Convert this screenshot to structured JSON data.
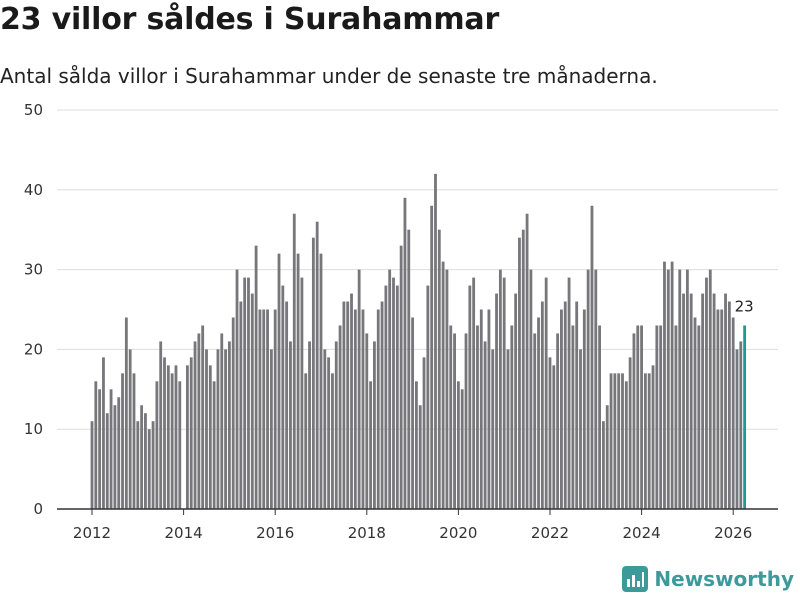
{
  "title": "23 villor såldes i Surahammar",
  "subtitle": "Antal sålda villor i Surahammar under de senaste tre månaderna.",
  "brand": "Newsworthy",
  "colors": {
    "bar": "#77767b",
    "highlight": "#1e9b8f",
    "grid": "#dddddd",
    "axis": "#333333",
    "brand": "#3d9a9b"
  },
  "chart_data": {
    "type": "bar",
    "title": "23 villor såldes i Surahammar",
    "subtitle": "Antal sålda villor i Surahammar under de senaste tre månaderna.",
    "xlabel": "",
    "ylabel": "",
    "ylim": [
      0,
      50
    ],
    "yticks": [
      0,
      10,
      20,
      30,
      40,
      50
    ],
    "xticks": [
      "2012",
      "2014",
      "2016",
      "2018",
      "2020",
      "2022",
      "2024",
      "2026"
    ],
    "xtick_values": [
      2012,
      2014,
      2016,
      2018,
      2020,
      2022,
      2024,
      2026
    ],
    "start": 2012.0,
    "step_years": 0.08333,
    "grid": true,
    "highlight_label": "23",
    "values": [
      11,
      16,
      15,
      19,
      12,
      15,
      13,
      14,
      17,
      24,
      20,
      17,
      11,
      13,
      12,
      10,
      11,
      16,
      21,
      19,
      18,
      17,
      18,
      16,
      0,
      18,
      19,
      21,
      22,
      23,
      20,
      18,
      16,
      20,
      22,
      20,
      21,
      24,
      30,
      26,
      29,
      29,
      27,
      33,
      25,
      25,
      25,
      20,
      25,
      32,
      28,
      26,
      21,
      37,
      32,
      29,
      17,
      21,
      34,
      36,
      32,
      20,
      19,
      17,
      21,
      23,
      26,
      26,
      27,
      25,
      30,
      25,
      22,
      16,
      21,
      25,
      26,
      28,
      30,
      29,
      28,
      33,
      39,
      35,
      24,
      16,
      13,
      19,
      28,
      38,
      42,
      35,
      31,
      30,
      23,
      22,
      16,
      15,
      22,
      28,
      29,
      23,
      25,
      21,
      25,
      20,
      27,
      30,
      29,
      20,
      23,
      27,
      34,
      35,
      37,
      30,
      22,
      24,
      26,
      29,
      19,
      18,
      22,
      25,
      26,
      29,
      23,
      26,
      20,
      25,
      30,
      38,
      30,
      23,
      11,
      13,
      17,
      17,
      17,
      17,
      16,
      19,
      22,
      23,
      23,
      17,
      17,
      18,
      23,
      23,
      31,
      30,
      31,
      23,
      30,
      27,
      30,
      27,
      24,
      23,
      27,
      29,
      30,
      27,
      25,
      25,
      27,
      26,
      24,
      20,
      21,
      23
    ]
  }
}
